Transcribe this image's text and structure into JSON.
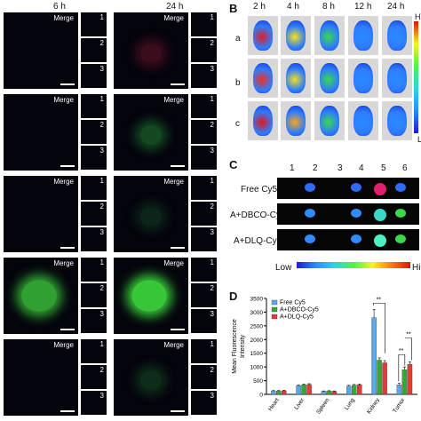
{
  "panelA": {
    "letter": "",
    "col_6h": "6 h",
    "col_24h": "24 h",
    "merge_label": "Merge",
    "sub_numbers": [
      "1",
      "2",
      "3"
    ]
  },
  "panelB": {
    "letter": "B",
    "times": [
      "2 h",
      "4 h",
      "8 h",
      "12 h",
      "24 h"
    ],
    "rows": [
      "a",
      "b",
      "c"
    ],
    "hi": "Hi",
    "low": "L"
  },
  "panelC": {
    "letter": "C",
    "organ_numbers": [
      "1",
      "2",
      "3",
      "4",
      "5",
      "6"
    ],
    "rows": [
      "Free Cy5",
      "A+DBCO-Cy5",
      "A+DLQ-Cy5"
    ],
    "low": "Low",
    "high": "Hi"
  },
  "chart_data": {
    "type": "bar",
    "letter": "D",
    "ylabel": "Mean Fluorescence Intensity",
    "ylim": [
      0,
      3500
    ],
    "yticks": [
      0,
      500,
      1000,
      1500,
      2000,
      2500,
      3000,
      3500
    ],
    "categories": [
      "Heart",
      "Liver",
      "Spleen",
      "Lung",
      "Kidney",
      "Tumor"
    ],
    "series": [
      {
        "name": "Free Cy5",
        "color": "#5aa7e8",
        "values": [
          120,
          320,
          110,
          300,
          2800,
          350
        ],
        "errors": [
          20,
          30,
          15,
          30,
          300,
          50
        ]
      },
      {
        "name": "A+DBCO-Cy5",
        "color": "#3aa63a",
        "values": [
          120,
          350,
          120,
          330,
          1250,
          900
        ],
        "errors": [
          20,
          30,
          15,
          30,
          80,
          100
        ]
      },
      {
        "name": "A+DLQ-Cy5",
        "color": "#e23a3a",
        "values": [
          130,
          360,
          110,
          350,
          1150,
          1100
        ],
        "errors": [
          20,
          30,
          15,
          30,
          80,
          80
        ]
      }
    ],
    "significance": [
      "**",
      "**",
      "**"
    ],
    "legend_position": "top-left"
  }
}
